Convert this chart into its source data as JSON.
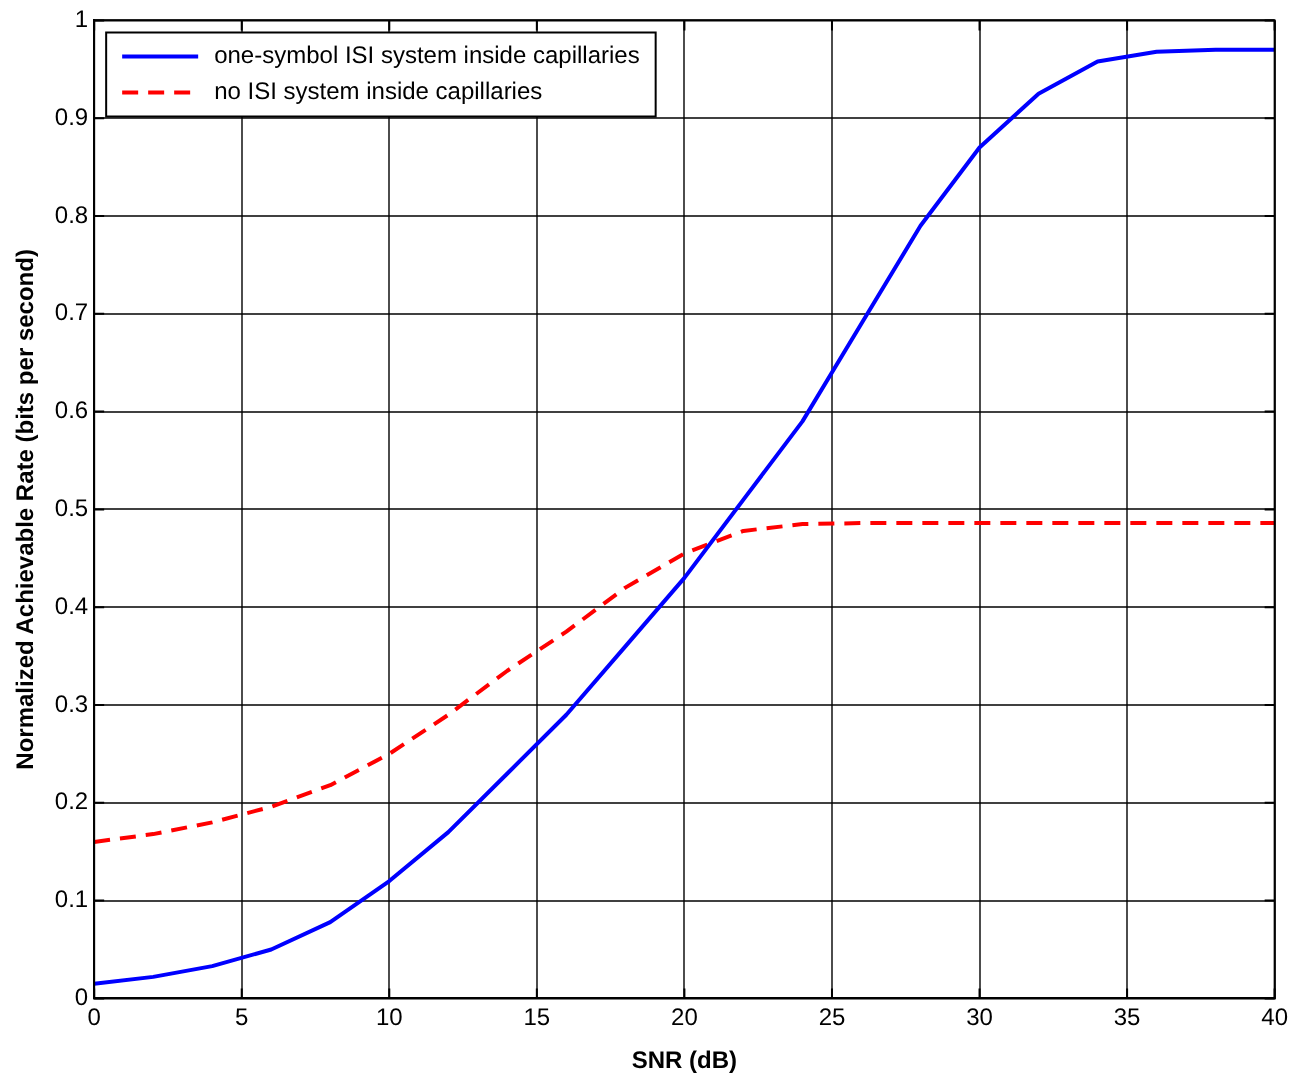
{
  "chart_data": {
    "type": "line",
    "xlabel": "SNR (dB)",
    "ylabel": "Normalized Achievable Rate (bits per second)",
    "x": [
      0,
      2,
      4,
      6,
      8,
      10,
      12,
      14,
      16,
      18,
      20,
      22,
      24,
      26,
      28,
      30,
      32,
      34,
      36,
      38,
      40
    ],
    "series": [
      {
        "name": "one-symbol ISI system inside capillaries",
        "color": "#0000ff",
        "line_style": "solid",
        "values": [
          0.015,
          0.022,
          0.033,
          0.05,
          0.078,
          0.12,
          0.17,
          0.23,
          0.29,
          0.36,
          0.43,
          0.51,
          0.59,
          0.69,
          0.79,
          0.87,
          0.925,
          0.958,
          0.968,
          0.97,
          0.97
        ]
      },
      {
        "name": "no ISI system inside capillaries",
        "color": "#ff0000",
        "line_style": "dashed",
        "values": [
          0.16,
          0.168,
          0.18,
          0.196,
          0.218,
          0.25,
          0.29,
          0.335,
          0.375,
          0.42,
          0.455,
          0.478,
          0.485,
          0.486,
          0.486,
          0.486,
          0.486,
          0.486,
          0.486,
          0.486,
          0.486
        ]
      }
    ],
    "xlim": [
      0,
      40
    ],
    "xticks": [
      0,
      5,
      10,
      15,
      20,
      25,
      30,
      35,
      40
    ],
    "ylim": [
      0,
      1
    ],
    "yticks": [
      0,
      0.1,
      0.2,
      0.3,
      0.4,
      0.5,
      0.6,
      0.7,
      0.8,
      0.9,
      1
    ],
    "grid": true,
    "legend": "top left",
    "marker": "none"
  }
}
